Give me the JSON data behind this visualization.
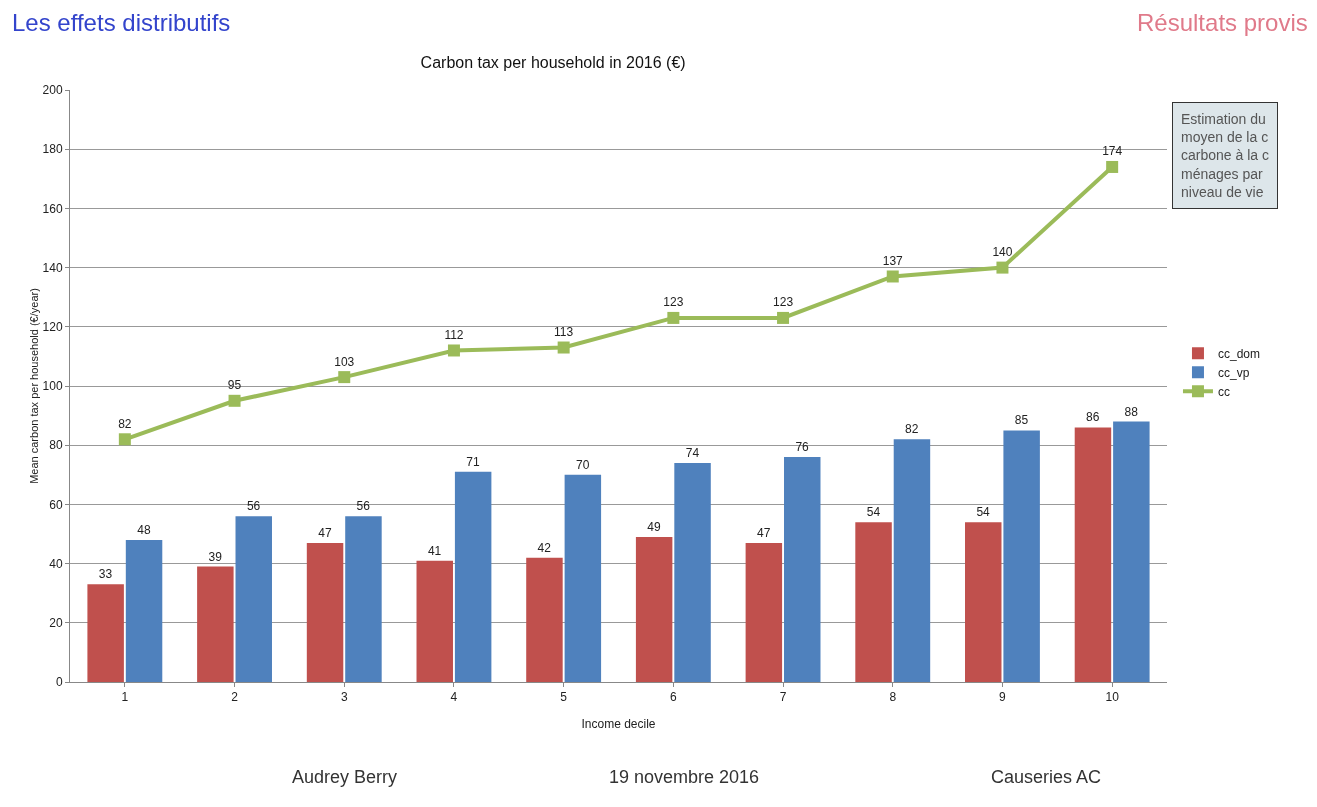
{
  "chart_data": {
    "type": "bar",
    "title": "Carbon tax per household in 2016 (€)",
    "xlabel": "Income decile",
    "ylabel": "Mean carbon tax per household (€/year)",
    "categories": [
      "1",
      "2",
      "3",
      "4",
      "5",
      "6",
      "7",
      "8",
      "9",
      "10"
    ],
    "series": [
      {
        "name": "cc_dom",
        "color": "#c0504d",
        "values": [
          33,
          39,
          47,
          41,
          42,
          49,
          47,
          54,
          54,
          86
        ]
      },
      {
        "name": "cc_vp",
        "color": "#4f81bd",
        "values": [
          48,
          56,
          56,
          71,
          70,
          74,
          76,
          82,
          85,
          88
        ]
      },
      {
        "name": "cc",
        "type": "line",
        "color": "#9bbb59",
        "marker": "square",
        "values": [
          82,
          95,
          103,
          112,
          113,
          123,
          123,
          137,
          140,
          174
        ]
      }
    ],
    "ylim": [
      0,
      200
    ],
    "yticks": [
      0,
      20,
      40,
      60,
      80,
      100,
      120,
      140,
      160,
      180,
      200
    ],
    "grid": "y",
    "legend": "right",
    "data_labels": true,
    "annotations": [
      "Les effets distributifs",
      "Résultats provis",
      "Estimation du\nmoyen de la c\ncarbone à la c\nménages par \nniveau de vie",
      "Audrey Berry",
      "19 novembre 2016",
      "Causeries AC"
    ]
  }
}
